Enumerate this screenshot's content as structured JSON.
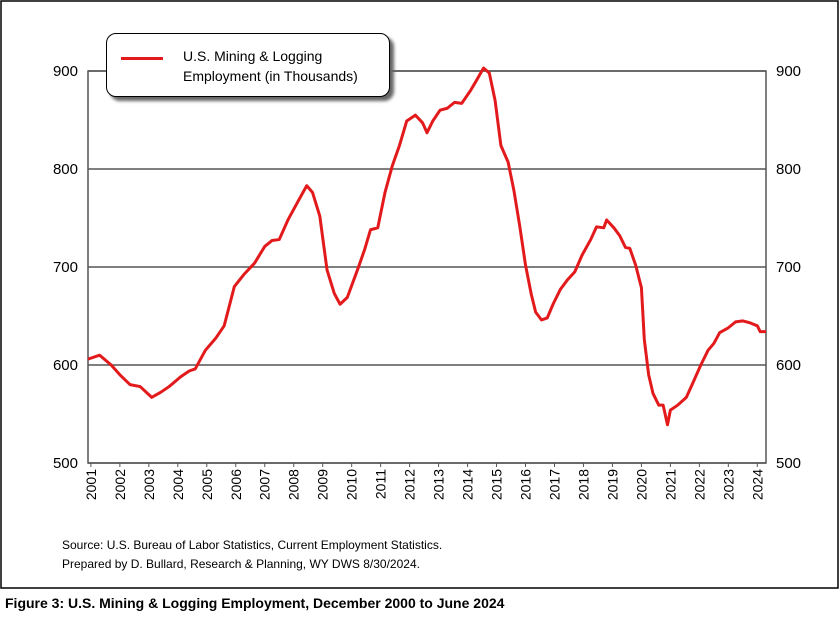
{
  "chart_data": {
    "type": "line",
    "caption": "Figure 3: U.S. Mining & Logging Employment, December 2000 to June 2024",
    "notes": [
      "Source: U.S. Bureau of Labor Statistics, Current Employment Statistics.",
      "Prepared by D. Bullard, Research & Planning, WY DWS 8/30/2024."
    ],
    "x": [
      2000.9,
      2001.3,
      2001.7,
      2002.0,
      2002.35,
      2002.7,
      2003.1,
      2003.4,
      2003.7,
      2004.1,
      2004.4,
      2004.6,
      2004.95,
      2005.3,
      2005.6,
      2005.95,
      2006.3,
      2006.65,
      2007.0,
      2007.25,
      2007.5,
      2007.8,
      2008.15,
      2008.45,
      2008.65,
      2008.9,
      2009.15,
      2009.4,
      2009.6,
      2009.85,
      2010.2,
      2010.45,
      2010.65,
      2010.9,
      2011.15,
      2011.4,
      2011.65,
      2011.9,
      2012.2,
      2012.45,
      2012.6,
      2012.8,
      2013.05,
      2013.3,
      2013.55,
      2013.8,
      2014.1,
      2014.3,
      2014.55,
      2014.75,
      2014.95,
      2015.15,
      2015.4,
      2015.6,
      2015.8,
      2016.0,
      2016.2,
      2016.35,
      2016.55,
      2016.75,
      2016.95,
      2017.2,
      2017.45,
      2017.7,
      2017.95,
      2018.25,
      2018.45,
      2018.7,
      2018.8,
      2019.05,
      2019.25,
      2019.45,
      2019.6,
      2019.8,
      2020.0,
      2020.1,
      2020.25,
      2020.4,
      2020.6,
      2020.75,
      2020.9,
      2021.0,
      2021.25,
      2021.55,
      2021.75,
      2022.05,
      2022.3,
      2022.5,
      2022.7,
      2023.0,
      2023.25,
      2023.5,
      2023.75,
      2024.0,
      2024.1,
      2024.3
    ],
    "series": [
      {
        "name": "U.S. Mining & Logging Employment (in Thousands)",
        "color": "#e31a1c",
        "values": [
          606,
          610,
          600,
          590,
          580,
          578,
          567,
          572,
          578,
          588,
          594,
          596,
          615,
          627,
          640,
          680,
          693,
          704,
          721,
          727,
          728,
          748,
          767,
          783,
          776,
          752,
          697,
          673,
          662,
          669,
          697,
          718,
          738,
          740,
          776,
          803,
          824,
          849,
          855,
          847,
          837,
          849,
          860,
          862,
          868,
          867,
          880,
          890,
          903,
          898,
          870,
          824,
          807,
          778,
          742,
          702,
          672,
          654,
          646,
          648,
          662,
          677,
          687,
          695,
          712,
          728,
          741,
          740,
          748,
          740,
          732,
          720,
          719,
          702,
          679,
          626,
          590,
          571,
          559,
          559,
          539,
          554,
          559,
          567,
          580,
          600,
          615,
          622,
          633,
          638,
          644,
          645,
          643,
          640,
          634,
          634
        ]
      }
    ],
    "xlim": [
      2000.9,
      2024.3
    ],
    "xticks": [
      2001,
      2002,
      2003,
      2004,
      2005,
      2006,
      2007,
      2008,
      2009,
      2010,
      2011,
      2012,
      2013,
      2014,
      2015,
      2016,
      2017,
      2018,
      2019,
      2020,
      2021,
      2022,
      2023,
      2024
    ],
    "ylim": [
      500,
      900
    ],
    "yticks": [
      500,
      600,
      700,
      800,
      900
    ],
    "grid": true
  }
}
